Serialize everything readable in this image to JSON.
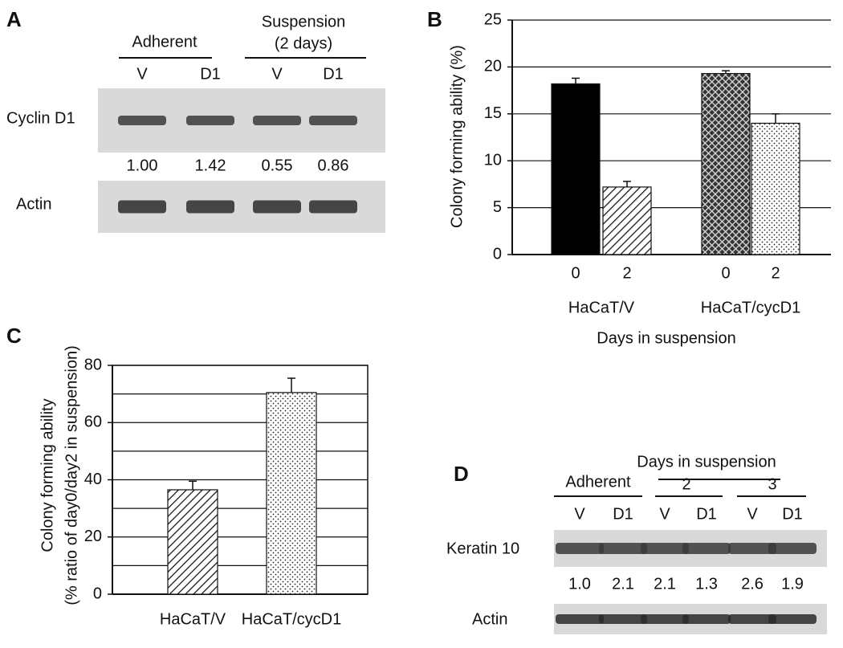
{
  "panel_labels": [
    "A",
    "B",
    "C",
    "D"
  ],
  "blot_a": {
    "groups": [
      "Adherent",
      "Suspension",
      "(2 days)"
    ],
    "lanes": [
      "V",
      "D1",
      "V",
      "D1"
    ],
    "rows": [
      "Cyclin D1",
      "Actin"
    ],
    "quant": [
      "1.00",
      "1.42",
      "0.55",
      "0.86"
    ]
  },
  "blot_d": {
    "title": "Days in suspension",
    "groups": [
      "Adherent",
      "2",
      "3"
    ],
    "lanes": [
      "V",
      "D1",
      "V",
      "D1",
      "V",
      "D1"
    ],
    "rows": [
      "Keratin 10",
      "Actin"
    ],
    "quant": [
      "1.0",
      "2.1",
      "2.1",
      "1.3",
      "2.6",
      "1.9"
    ]
  },
  "chart_data": [
    {
      "type": "bar",
      "ylabel": "Colony forming ability (%)",
      "xlabel": "Days in suspension",
      "categories": [
        "0",
        "2",
        "0",
        "2"
      ],
      "groups": [
        "HaCaT/V",
        "HaCaT/cycD1"
      ],
      "values": [
        18.2,
        7.2,
        19.3,
        14.0
      ],
      "errors": [
        0.6,
        0.6,
        0.3,
        1.0
      ],
      "fills": [
        "solid",
        "hatch",
        "cross",
        "dots"
      ],
      "ylim": [
        0,
        25
      ],
      "yticks": [
        0,
        5,
        10,
        15,
        20,
        25
      ],
      "grid": true
    },
    {
      "type": "bar",
      "ylabel": [
        "Colony forming ability",
        "(% ratio of day0/day2 in suspension)"
      ],
      "categories": [
        "HaCaT/V",
        "HaCaT/cycD1"
      ],
      "values": [
        36.5,
        70.5
      ],
      "errors": [
        3.0,
        5.0
      ],
      "fills": [
        "hatch",
        "dots"
      ],
      "ylim": [
        0,
        80
      ],
      "yticks": [
        0,
        20,
        40,
        60,
        80
      ],
      "minor_yticks": [
        10,
        30,
        50,
        70
      ],
      "grid": true,
      "frame": true
    }
  ]
}
